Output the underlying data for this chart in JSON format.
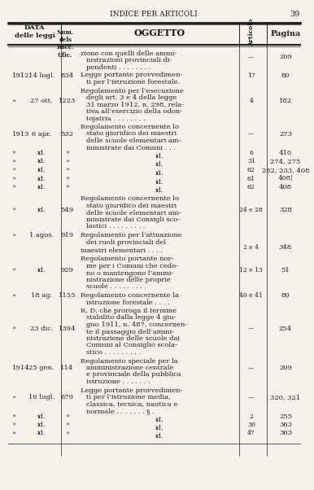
{
  "title": "INDICE PER ARTICOLI",
  "page_num": "39",
  "bg_color": "#f5f2eb",
  "text_color": "#1a1a1a",
  "header": {
    "col1": "DATA\ndelle leggi",
    "col2": "Num.\ndels\nRacc.\nUfic.",
    "col3": "OGGETTO",
    "col4": "Articolo",
    "col5": "Pagina"
  },
  "rows": [
    {
      "year": "",
      "date": "",
      "num": "",
      "oggetto": "zione con quelli delle ammi-\nnistrazioni provinciali di-\npendenti . . . . . . . .",
      "articolo": "—",
      "pagina": "209"
    },
    {
      "year": "1912",
      "date": "14 lugl.",
      "num": "834",
      "oggetto": "Legge portante provvedimen-\nti per l’istruzione forestale.",
      "articolo": "17",
      "pagina": "80"
    },
    {
      "year": "»",
      "date": "27 ott.",
      "num": "1223",
      "oggetto": "Regolamento per l’esecuzione\ndegli art. 3 e 4 della legge\n31 marzo 1912, n. 298, rela-\ntiva all’esercizio della odon-\ntojatria . . . . . . . .",
      "articolo": "4",
      "pagina": "182"
    },
    {
      "year": "1913",
      "date": "6 apr.",
      "num": "532",
      "oggetto": "Regolamento concernente lo\nstato giuridico dei maestri\ndelle scuole elementari am-\nministrate dai Comuni . . .",
      "articolo": "—",
      "pagina": "273"
    },
    {
      "year": "»",
      "date": "id.",
      "num": "»",
      "oggetto": "id.",
      "articolo": "6",
      "pagina": "410"
    },
    {
      "year": "»",
      "date": "id.",
      "num": "»",
      "oggetto": "id.",
      "articolo": "31",
      "pagina": "274, 275"
    },
    {
      "year": "»",
      "date": "id.",
      "num": "»",
      "oggetto": "id.",
      "articolo": "62",
      "pagina": "282, 233, 408"
    },
    {
      "year": "»",
      "date": "id.",
      "num": "»",
      "oggetto": "id.",
      "articolo": "61",
      "pagina": "408¦"
    },
    {
      "year": "»",
      "date": "id.",
      "num": "»",
      "oggetto": "id.",
      "articolo": "62",
      "pagina": "408"
    },
    {
      "year": "»",
      "date": "id.",
      "num": "549",
      "oggetto": "Regolamento concernente lo\nstato giuridico dei maestri\ndelle scuole elementari am-\nministrate dai Consigli sco-\nlastici . . . . . . . . .",
      "articolo": "24 e 28",
      "pagina": "328"
    },
    {
      "year": "»",
      "date": "1 agos.",
      "num": "919",
      "oggetto": "Regolamento per l’attuazione\ndei ruoli provinciali del",
      "articolo": "",
      "pagina": ""
    },
    {
      "year": "",
      "date": "",
      "num": "",
      "oggetto": "maestri elementari . . . .",
      "articolo": "2 e 4",
      "pagina": "348"
    },
    {
      "year": "»",
      "date": "id.",
      "num": "929",
      "oggetto": "Regolamento portante nor-\nme per i Comuni che cedo-\nno o mantengono l’ammi-\nnistrazione delle proprie\nscuole . . . . . . . . .",
      "articolo": "12 e 13",
      "pagina": "51"
    },
    {
      "year": "»",
      "date": "18 ag.",
      "num": "1155",
      "oggetto": "Regolamento concernente la\nistruzione forestale . . . .",
      "articolo": "40 e 41",
      "pagina": "80"
    },
    {
      "year": "»",
      "date": "23 dic.",
      "num": "1394",
      "oggetto": "R. D. che proroga il termine\nstabilito dalla legge 4 giu-\ngno 1911, n. 487, concernen-\nte il passaggio dell’ammi-\nnistrazione delle scuole dai\nComuni al Consiglio scola-\nstico . . . . . . . . .",
      "articolo": "—",
      "pagina": "254"
    },
    {
      "year": "1914",
      "date": "25 gen.",
      "num": "114",
      "oggetto": "Regolamento speciale per la\namministrazione centrale\ne provinciale della pubblica\nistruzione . . . . . . .",
      "articolo": "—",
      "pagina": "209"
    },
    {
      "year": "»",
      "date": "16 lugl.",
      "num": "679",
      "oggetto": "Legge portante provvedimen-\nti per l’istruzione media,\nclassica, tecnica, nautica e\nnormale . . . . . . . § .",
      "articolo": "—",
      "pagina": "320, 321"
    },
    {
      "year": "»",
      "date": "id.",
      "num": "»",
      "oggetto": "id.",
      "articolo": "2",
      "pagina": "255"
    },
    {
      "year": "»",
      "date": "id.",
      "num": "»",
      "oggetto": "id.",
      "articolo": "30",
      "pagina": "363"
    },
    {
      "year": "»",
      "date": "id.",
      "num": "»",
      "oggetto": "id.",
      "articolo": "47",
      "pagina": "363"
    }
  ]
}
